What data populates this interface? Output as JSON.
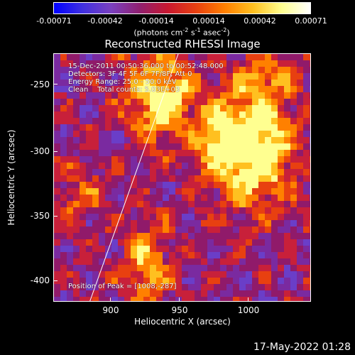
{
  "colorbar": {
    "ticks": [
      "-0.00071",
      "-0.00042",
      "-0.00014",
      "0.00014",
      "0.00042",
      "0.00071"
    ],
    "units_prefix": "(photons cm",
    "units_exp1": "-2",
    "units_mid": " s",
    "units_exp2": "-1",
    "units_mid2": " asec",
    "units_exp3": "-2",
    "units_suffix": ")"
  },
  "title": "Reconstructed RHESSI Image",
  "info": {
    "time": "15-Dec-2011 00:50:36.000 to 00:52:48.000",
    "detectors": "Detectors: 3F 4F 5F 6F 7F/8F, Att 0",
    "energy": "Energy Range: 25.0 - 50.0 keV",
    "clean": "Clean    Total counts: 5.03E+03",
    "peak": "Position of Peak = [1008,-287]"
  },
  "x_axis": {
    "label": "Heliocentric X (arcsec)",
    "ticks": [
      "900",
      "950",
      "1000"
    ]
  },
  "y_axis": {
    "label": "Heliocentric Y (arcsec)",
    "ticks": [
      "-250",
      "-300",
      "-350",
      "-400"
    ]
  },
  "timestamp": "17-May-2022 01:28",
  "colors": {
    "cmap": [
      "#0000ff",
      "#6a3ec8",
      "#7a2aa0",
      "#901a6a",
      "#c8203a",
      "#e84010",
      "#ff8000",
      "#ffc020",
      "#ffff90",
      "#ffffff"
    ]
  }
}
